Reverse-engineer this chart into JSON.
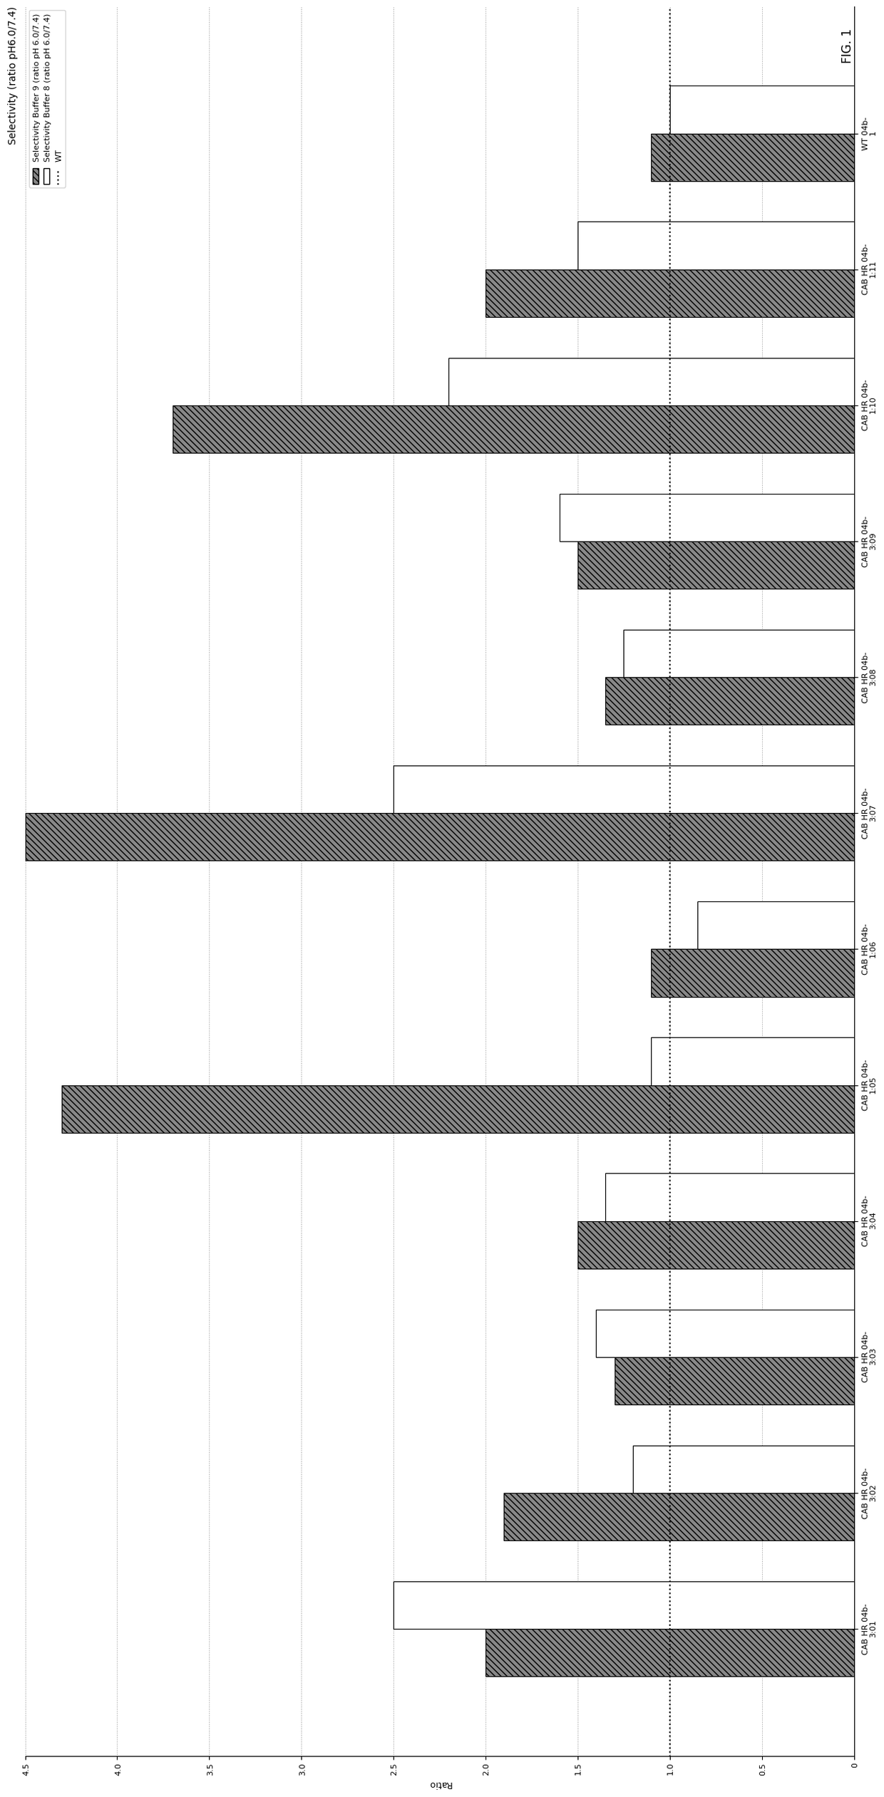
{
  "title": "Selectivity (ratio pH6.0/7.4)",
  "xlabel": "Ratio",
  "categories": [
    "CAB HR 04b-\n3:01",
    "CAB HR 04b-\n3:02",
    "CAB HR 04b-\n3:03",
    "CAB HR 04b-\n3:04",
    "CAB HR 04b-\n1:05",
    "CAB HR 04b-\n1:06",
    "CAB HR 04b-\n3:07",
    "CAB HR 04b-\n3:08",
    "CAB HR 04b-\n3:09",
    "CAB HR 04b-\n1:10",
    "CAB HR 04b-\n1:11",
    "WT 04b-\n1"
  ],
  "series1_values": [
    2.0,
    1.9,
    1.3,
    1.5,
    4.3,
    1.1,
    4.5,
    1.35,
    1.5,
    3.7,
    2.0,
    1.1
  ],
  "series2_values": [
    2.5,
    1.2,
    1.4,
    1.35,
    1.1,
    0.85,
    2.5,
    1.25,
    1.6,
    2.2,
    1.5,
    1.0
  ],
  "ylim": [
    0,
    4.5
  ],
  "yticks": [
    0,
    0.5,
    1.0,
    1.5,
    2.0,
    2.5,
    3.0,
    3.5,
    4.0,
    4.5
  ],
  "wt_line": 1.0,
  "series1_label": "Selectivity Buffer 9 (ratio pH 6.0/7.4)",
  "series2_label": "Selectivity Buffer 8 (ratio pH 6.0/7.4)",
  "wt_label": "WT",
  "bar_width": 0.35,
  "title_fontsize": 10,
  "axis_fontsize": 9,
  "tick_fontsize": 8,
  "legend_fontsize": 8
}
